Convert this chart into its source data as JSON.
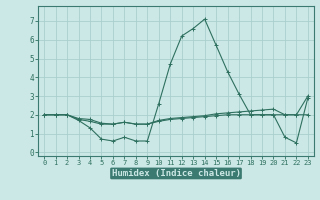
{
  "xlabel": "Humidex (Indice chaleur)",
  "bg_color": "#cce8e6",
  "band_color": "#3a7a70",
  "grid_color": "#aacfcc",
  "line_color": "#2e7060",
  "tick_label_color": "#2e7060",
  "xlabel_bg": "#3a7a70",
  "xlabel_fg": "#cce8e6",
  "xlim": [
    -0.5,
    23.5
  ],
  "ylim": [
    -0.2,
    7.8
  ],
  "xticks": [
    0,
    1,
    2,
    3,
    4,
    5,
    6,
    7,
    8,
    9,
    10,
    11,
    12,
    13,
    14,
    15,
    16,
    17,
    18,
    19,
    20,
    21,
    22,
    23
  ],
  "yticks": [
    0,
    1,
    2,
    3,
    4,
    5,
    6,
    7
  ],
  "series1_x": [
    0,
    1,
    2,
    3,
    4,
    5,
    6,
    7,
    8,
    9,
    10,
    11,
    12,
    13,
    14,
    15,
    16,
    17,
    18,
    19,
    20,
    21,
    22,
    23
  ],
  "series1_y": [
    2.0,
    2.0,
    2.0,
    1.7,
    1.3,
    0.7,
    0.6,
    0.8,
    0.6,
    0.6,
    2.6,
    4.7,
    6.2,
    6.6,
    7.1,
    5.7,
    4.3,
    3.1,
    2.0,
    2.0,
    2.0,
    0.8,
    0.5,
    2.9
  ],
  "series2_x": [
    0,
    1,
    2,
    3,
    4,
    5,
    6,
    7,
    8,
    9,
    10,
    11,
    12,
    13,
    14,
    15,
    16,
    17,
    18,
    19,
    20,
    21,
    22,
    23
  ],
  "series2_y": [
    2.0,
    2.0,
    2.0,
    1.8,
    1.75,
    1.55,
    1.5,
    1.6,
    1.5,
    1.5,
    1.7,
    1.8,
    1.85,
    1.9,
    1.95,
    2.05,
    2.1,
    2.15,
    2.2,
    2.25,
    2.3,
    2.0,
    2.0,
    3.0
  ],
  "series3_x": [
    0,
    1,
    2,
    3,
    4,
    5,
    6,
    7,
    8,
    9,
    10,
    11,
    12,
    13,
    14,
    15,
    16,
    17,
    18,
    19,
    20,
    21,
    22,
    23
  ],
  "series3_y": [
    2.0,
    2.0,
    2.0,
    1.75,
    1.65,
    1.5,
    1.5,
    1.6,
    1.5,
    1.5,
    1.65,
    1.75,
    1.8,
    1.85,
    1.9,
    1.95,
    2.0,
    2.0,
    2.0,
    2.0,
    2.0,
    2.0,
    2.0,
    2.0
  ]
}
